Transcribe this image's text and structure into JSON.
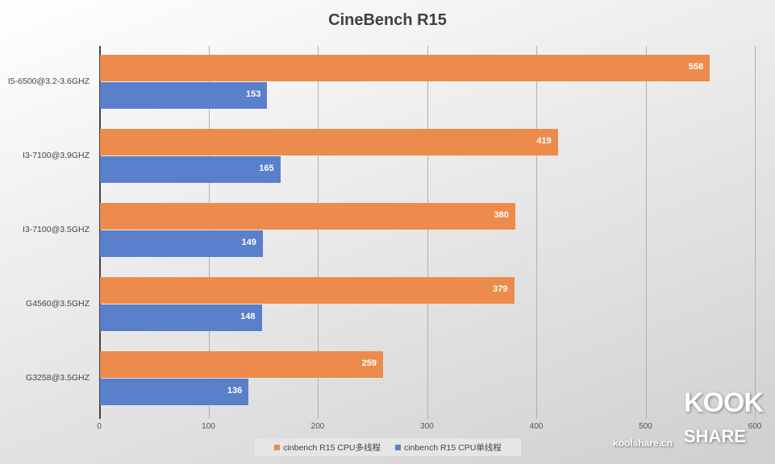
{
  "chart_data": {
    "type": "bar",
    "orientation": "horizontal",
    "title": "CineBench R15",
    "categories": [
      "I5-6500@3.2-3.6GHZ",
      "I3-7100@3.9GHZ",
      "I3-7100@3.5GHZ",
      "G4560@3.5GHZ",
      "G3258@3.5GHZ"
    ],
    "series": [
      {
        "name": "cinbench R15 CPU多线程",
        "color": "#ed8b4c",
        "values": [
          558,
          419,
          380,
          379,
          259
        ]
      },
      {
        "name": "cinbench R15 CPU单线程",
        "color": "#5a7fcb",
        "values": [
          153,
          165,
          149,
          148,
          136
        ]
      }
    ],
    "xlabel": "",
    "ylabel": "",
    "xlim": [
      0,
      600
    ],
    "xticks": [
      "0",
      "100",
      "200",
      "300",
      "400",
      "500",
      "600"
    ],
    "grid": true,
    "legend_position": "bottom"
  },
  "watermark": {
    "logo_top": "KOOK",
    "logo_bottom": "SHARE",
    "url": "koolshare.cn"
  }
}
